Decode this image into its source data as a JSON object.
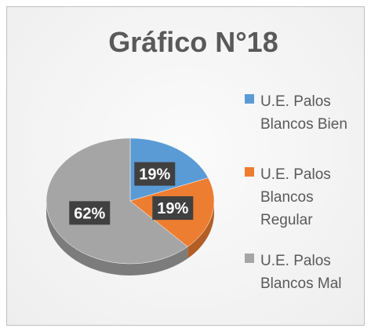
{
  "chart_data": {
    "type": "pie",
    "title": "Gráfico N°18",
    "categories": [
      "U.E. Palos Blancos Bien",
      "U.E. Palos Blancos Regular",
      "U.E. Palos Blancos Mal"
    ],
    "values": [
      19,
      19,
      62
    ],
    "value_labels": [
      "19%",
      "19%",
      "62%"
    ],
    "colors": [
      "#5b9bd5",
      "#ed7d31",
      "#a5a5a5"
    ],
    "legend": "right"
  }
}
